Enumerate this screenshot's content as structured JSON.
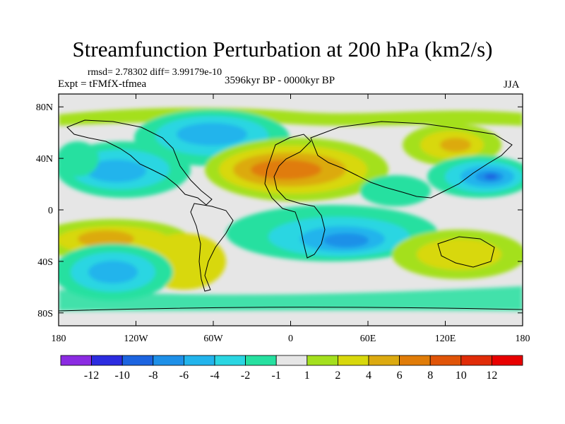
{
  "title": "Streamfunction Perturbation at 200 hPa (km2/s)",
  "stats": "rmsd= 2.78302 diff= 3.99179e-10",
  "experiment": "Expt = tFMfX-tfmea",
  "period": "3596kyr BP - 0000kyr BP",
  "season": "JJA",
  "map": {
    "projection": "cylindrical equidistant",
    "lon_range": [
      -180,
      180
    ],
    "lat_range": [
      -90,
      90
    ],
    "x_ticks": [
      {
        "lon": -180,
        "label": "180"
      },
      {
        "lon": -120,
        "label": "120W"
      },
      {
        "lon": -60,
        "label": "60W"
      },
      {
        "lon": 0,
        "label": "0"
      },
      {
        "lon": 60,
        "label": "60E"
      },
      {
        "lon": 120,
        "label": "120E"
      },
      {
        "lon": 180,
        "label": "180"
      }
    ],
    "y_ticks": [
      {
        "lat": 80,
        "label": "80N"
      },
      {
        "lat": 40,
        "label": "40N"
      },
      {
        "lat": 0,
        "label": "0"
      },
      {
        "lat": -40,
        "label": "40S"
      },
      {
        "lat": -80,
        "label": "80S"
      }
    ]
  },
  "colorbar": {
    "colors": [
      "#8b2be2",
      "#2c2ce0",
      "#1c64e0",
      "#1e90e8",
      "#22b4ec",
      "#2ad6e2",
      "#26e0a0",
      "#e6e6e6",
      "#a4e01e",
      "#d8d80c",
      "#dcaa10",
      "#e07c08",
      "#e05408",
      "#e02c08",
      "#e80000"
    ],
    "labels": [
      "-12",
      "-10",
      "-8",
      "-6",
      "-4",
      "-2",
      "-1",
      "1",
      "2",
      "4",
      "6",
      "8",
      "10",
      "12"
    ]
  },
  "chart_data": {
    "type": "heatmap",
    "title": "Streamfunction Perturbation at 200 hPa (km2/s)",
    "variable": "200 hPa streamfunction perturbation",
    "units": "km2/s",
    "levels": [
      -12,
      -10,
      -8,
      -6,
      -4,
      -2,
      -1,
      1,
      2,
      4,
      6,
      8,
      10,
      12
    ],
    "features": [
      {
        "lon": 0,
        "lat": 35,
        "value": 7,
        "label": "high over North Africa / Mediterranean"
      },
      {
        "lon": 18,
        "lat": 30,
        "value": 6,
        "label": "high over Sahara"
      },
      {
        "lon": 150,
        "lat": 30,
        "value": -10,
        "label": "low over NW Pacific"
      },
      {
        "lon": 115,
        "lat": 60,
        "value": 5,
        "label": "high over Siberia"
      },
      {
        "lon": 40,
        "lat": -28,
        "value": -9,
        "label": "low over southern Africa / Indian Ocean"
      },
      {
        "lon": -127,
        "lat": -50,
        "value": -7,
        "label": "low over South Pacific"
      },
      {
        "lon": -125,
        "lat": 20,
        "value": -6,
        "label": "low over NE Pacific"
      },
      {
        "lon": -150,
        "lat": -20,
        "value": 5,
        "label": "high over central South Pacific"
      },
      {
        "lon": -80,
        "lat": -35,
        "value": 5,
        "label": "high off Chile"
      },
      {
        "lon": -45,
        "lat": 70,
        "value": -5,
        "label": "low over Greenland"
      },
      {
        "lon": 140,
        "lat": -30,
        "value": 4,
        "label": "high over Australia"
      }
    ]
  }
}
